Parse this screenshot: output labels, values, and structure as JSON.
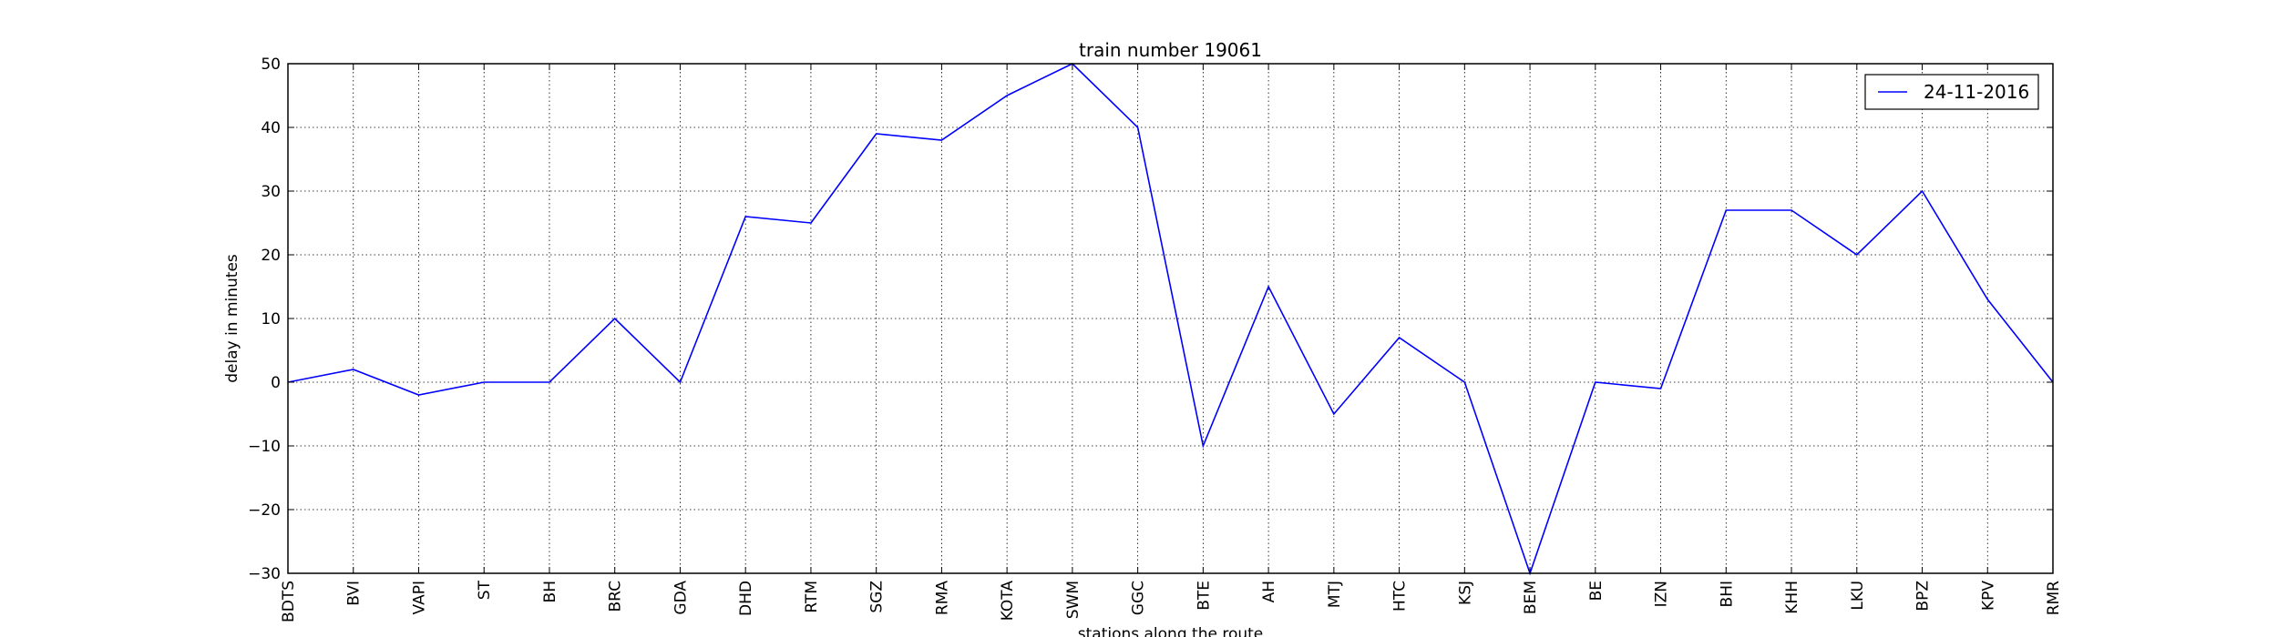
{
  "chart_data": {
    "type": "line",
    "title": "train number 19061",
    "xlabel": "stations along the route",
    "ylabel": "delay in minutes",
    "categories": [
      "BDTS",
      "BVI",
      "VAPI",
      "ST",
      "BH",
      "BRC",
      "GDA",
      "DHD",
      "RTM",
      "SGZ",
      "RMA",
      "KOTA",
      "SWM",
      "GGC",
      "BTE",
      "AH",
      "MTJ",
      "HTC",
      "KSJ",
      "BEM",
      "BE",
      "IZN",
      "BHI",
      "KHH",
      "LKU",
      "BPZ",
      "KPV",
      "RMR"
    ],
    "series": [
      {
        "name": "24-11-2016",
        "color": "#0000ff",
        "values": [
          0,
          2,
          -2,
          0,
          0,
          10,
          0,
          26,
          25,
          39,
          38,
          45,
          50,
          40,
          -10,
          15,
          -5,
          7,
          0,
          -30,
          0,
          -1,
          27,
          27,
          20,
          30,
          13,
          0
        ]
      }
    ],
    "ylim": [
      -30,
      50
    ],
    "yticks": [
      -30,
      -20,
      -10,
      0,
      10,
      20,
      30,
      40,
      50
    ],
    "ytick_labels": [
      "−30",
      "−20",
      "−10",
      "0",
      "10",
      "20",
      "30",
      "40",
      "50"
    ],
    "grid": true,
    "legend_position": "top-right"
  }
}
